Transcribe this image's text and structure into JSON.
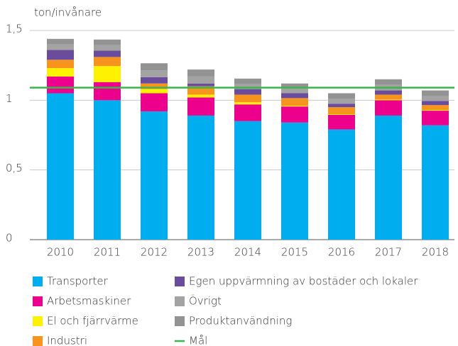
{
  "chart_data": {
    "type": "stacked-bar",
    "ylabel": "ton/invånare",
    "categories": [
      "2010",
      "2011",
      "2012",
      "2013",
      "2014",
      "2015",
      "2016",
      "2017",
      "2018"
    ],
    "series": [
      {
        "name": "Transporter",
        "color": "#00aeef",
        "values": [
          1.05,
          1.0,
          0.92,
          0.89,
          0.85,
          0.84,
          0.79,
          0.89,
          0.82
        ]
      },
      {
        "name": "Arbetsmaskiner",
        "color": "#ec008c",
        "values": [
          0.12,
          0.13,
          0.13,
          0.13,
          0.12,
          0.115,
          0.105,
          0.11,
          0.105
        ]
      },
      {
        "name": "El och fjärrvärme",
        "color": "#fff200",
        "values": [
          0.06,
          0.115,
          0.03,
          0.02,
          0.015,
          0.005,
          0.005,
          0.005,
          0.005
        ]
      },
      {
        "name": "Industri",
        "color": "#f7941d",
        "values": [
          0.06,
          0.065,
          0.04,
          0.06,
          0.055,
          0.055,
          0.05,
          0.035,
          0.035
        ]
      },
      {
        "name": "Egen uppvärmning av bostäder och lokaler",
        "color": "#6a4c9c",
        "values": [
          0.07,
          0.045,
          0.045,
          0.02,
          0.04,
          0.035,
          0.025,
          0.03,
          0.03
        ]
      },
      {
        "name": "Övrigt",
        "color": "#a3a3a3",
        "values": [
          0.04,
          0.04,
          0.05,
          0.05,
          0.035,
          0.035,
          0.035,
          0.04,
          0.035
        ]
      },
      {
        "name": "Produktanvändning",
        "color": "#939393",
        "values": [
          0.04,
          0.04,
          0.05,
          0.05,
          0.04,
          0.035,
          0.04,
          0.04,
          0.04
        ]
      }
    ],
    "goal": {
      "name": "Mål",
      "value": 1.09,
      "color": "#3db54a"
    },
    "ylim": [
      0,
      1.5
    ],
    "yticks": [
      0,
      {
        "value": 0.5,
        "label": "0,5"
      },
      1,
      {
        "value": 1.5,
        "label": "1,5"
      }
    ],
    "grid": true
  }
}
